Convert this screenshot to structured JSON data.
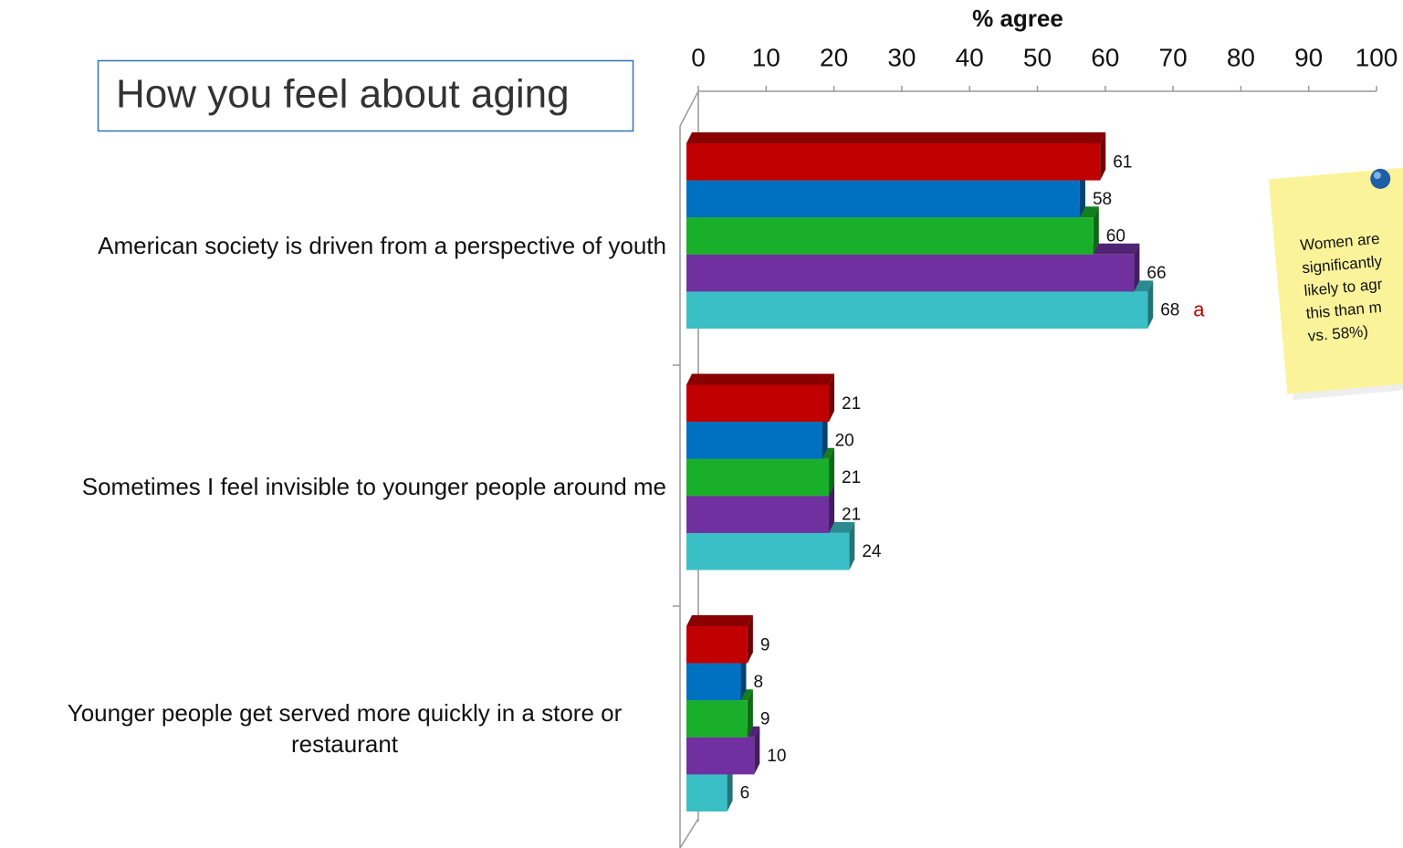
{
  "chart_data": {
    "type": "bar",
    "orientation": "horizontal",
    "title": "How you feel about aging",
    "x_label": "% agree",
    "categories": [
      "American society is driven from a perspective of youth",
      "Sometimes I feel invisible to younger people around me",
      "Younger people get served more quickly in a store or restaurant"
    ],
    "series": [
      {
        "color": "#c00000",
        "values": [
          61,
          21,
          9
        ]
      },
      {
        "color": "#0070c0",
        "values": [
          58,
          20,
          8
        ]
      },
      {
        "color": "#1aaf2a",
        "values": [
          60,
          21,
          9
        ]
      },
      {
        "color": "#7030a0",
        "values": [
          66,
          21,
          10
        ]
      },
      {
        "color": "#3bbfc6",
        "values": [
          68,
          24,
          6
        ]
      }
    ],
    "xlim": [
      0,
      100
    ],
    "xticks": [
      0,
      10,
      20,
      30,
      40,
      50,
      60,
      70,
      80,
      90,
      100
    ],
    "annotation": "a",
    "note": [
      "Women are",
      "significantly",
      "likely to agr",
      "this than m",
      "vs. 58%)"
    ]
  }
}
